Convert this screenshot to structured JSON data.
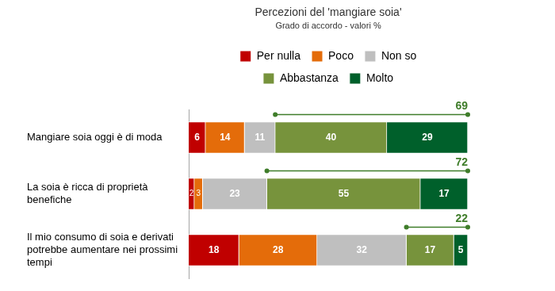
{
  "chart_data": {
    "type": "bar",
    "orientation": "horizontal",
    "stacked": true,
    "title": "Percezioni del 'mangiare soia'",
    "subtitle": "Grado di accordo - valori %",
    "categories": [
      "Mangiare soia oggi è di moda",
      "La soia è ricca di proprietà benefiche",
      "Il mio consumo di soia e derivati potrebbe aumentare nei prossimi tempi"
    ],
    "series": [
      {
        "name": "Per nulla",
        "color": "#c00000",
        "values": [
          6,
          2,
          18
        ]
      },
      {
        "name": "Poco",
        "color": "#e46c0a",
        "values": [
          14,
          3,
          28
        ]
      },
      {
        "name": "Non so",
        "color": "#bfbfbf",
        "values": [
          11,
          23,
          32
        ]
      },
      {
        "name": "Abbastanza",
        "color": "#77933c",
        "values": [
          40,
          55,
          17
        ]
      },
      {
        "name": "Molto",
        "color": "#00602b",
        "values": [
          29,
          17,
          5
        ]
      }
    ],
    "top_two_totals": [
      69,
      72,
      22
    ],
    "xlim": [
      0,
      100
    ],
    "grid": false,
    "legend": "top",
    "data_labels": true,
    "tick_labels": "y"
  }
}
